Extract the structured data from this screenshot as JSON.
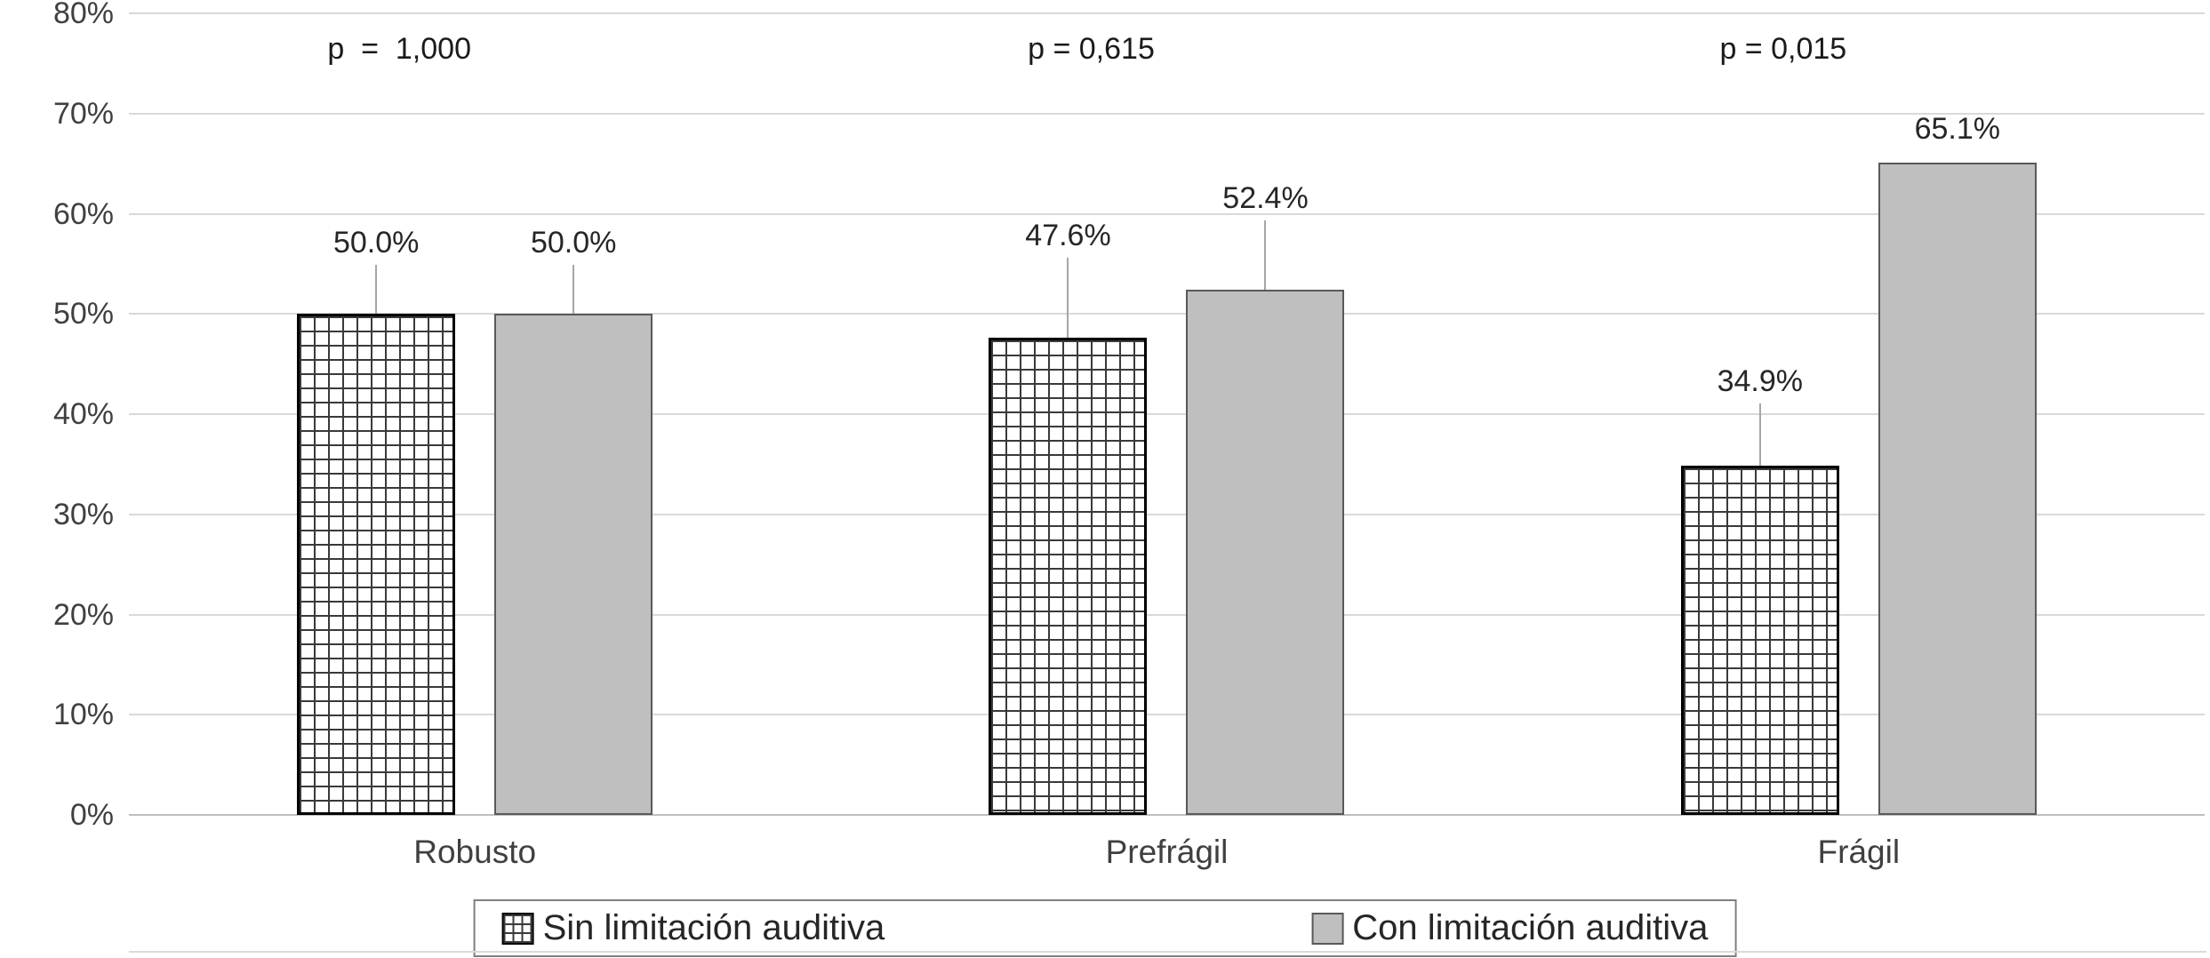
{
  "chart_data": {
    "type": "bar",
    "title": "",
    "categories": [
      "Robusto",
      "Prefrágil",
      "Frágil"
    ],
    "series": [
      {
        "name": "Sin limitación auditiva",
        "style": "crosshatch",
        "fill": "#ffffff",
        "values": [
          50.0,
          47.6,
          34.9
        ],
        "data_labels": [
          "50.0%",
          "47.6%",
          "34.9%"
        ]
      },
      {
        "name": "Con limitación auditiva",
        "style": "solid-gray",
        "fill": "#bfbfbf",
        "values": [
          50.0,
          52.4,
          65.1
        ],
        "data_labels": [
          "50.0%",
          "52.4%",
          "65.1%"
        ]
      }
    ],
    "annotations": [
      {
        "text": "p  =  1,000",
        "group": "Robusto"
      },
      {
        "text": "p = 0,615",
        "group": "Prefrágil"
      },
      {
        "text": "p = 0,015",
        "group": "Frágil"
      }
    ],
    "y_axis": {
      "min": 0,
      "max": 80,
      "step": 10,
      "tick_labels": [
        "0%",
        "10%",
        "20%",
        "30%",
        "40%",
        "50%",
        "60%",
        "70%",
        "80%"
      ],
      "grid": true
    },
    "x_axis": {
      "labels": [
        "Robusto",
        "Prefrágil",
        "Frágil"
      ]
    },
    "legend": {
      "position": "bottom",
      "entries": [
        "Sin limitación auditiva",
        "Con limitación auditiva"
      ]
    },
    "colors": {
      "grid_line": "#d9d9d9",
      "axis_line": "#bfbfbf",
      "bar_fill_gray": "#bfbfbf",
      "bar_border": "#000000",
      "leader_line": "#a6a6a6",
      "text": "#262626"
    }
  }
}
